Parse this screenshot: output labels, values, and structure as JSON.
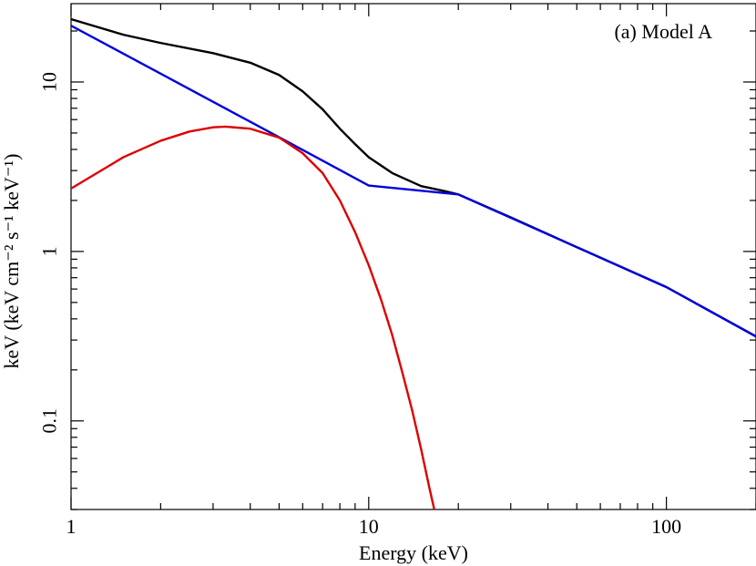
{
  "chart_data": {
    "type": "line",
    "xscale": "log",
    "yscale": "log",
    "xlim": [
      1,
      200
    ],
    "ylim": [
      0.03,
      29
    ],
    "xlabel": "Energy (keV)",
    "ylabel": "keV (keV cm⁻² s⁻¹ keV⁻¹)",
    "annotation": "(a) Model A",
    "x_ticks": [
      {
        "value": 1,
        "label": "1"
      },
      {
        "value": 10,
        "label": "10"
      },
      {
        "value": 100,
        "label": "100"
      }
    ],
    "y_ticks": [
      {
        "value": 0.1,
        "label": "0.1"
      },
      {
        "value": 1,
        "label": "1"
      },
      {
        "value": 10,
        "label": "10"
      }
    ],
    "series": [
      {
        "color": "#000000",
        "x": [
          1,
          1.5,
          2,
          3,
          4,
          5,
          6,
          7,
          8,
          9,
          10,
          12,
          15,
          18,
          20,
          30,
          50,
          100,
          200
        ],
        "y": [
          23.5,
          19.0,
          17.0,
          14.8,
          13.0,
          11.0,
          8.8,
          6.9,
          5.3,
          4.3,
          3.6,
          2.9,
          2.43,
          2.27,
          2.17,
          1.59,
          1.06,
          0.616,
          0.315
        ]
      },
      {
        "color": "#0000dd",
        "x": [
          1,
          2,
          5,
          10,
          20,
          50,
          100,
          200
        ],
        "y": [
          21.5,
          11.2,
          4.72,
          2.45,
          2.17,
          1.06,
          0.616,
          0.315
        ]
      },
      {
        "color": "#dd0000",
        "x": [
          1,
          1.5,
          2,
          2.5,
          3,
          3.3,
          4,
          5,
          6,
          7,
          8,
          9,
          10,
          11,
          12,
          13,
          14,
          15,
          16,
          17
        ],
        "y": [
          2.35,
          3.6,
          4.5,
          5.1,
          5.4,
          5.45,
          5.3,
          4.7,
          3.8,
          2.9,
          2.0,
          1.3,
          0.83,
          0.52,
          0.32,
          0.19,
          0.115,
          0.068,
          0.04,
          0.025
        ]
      }
    ]
  }
}
